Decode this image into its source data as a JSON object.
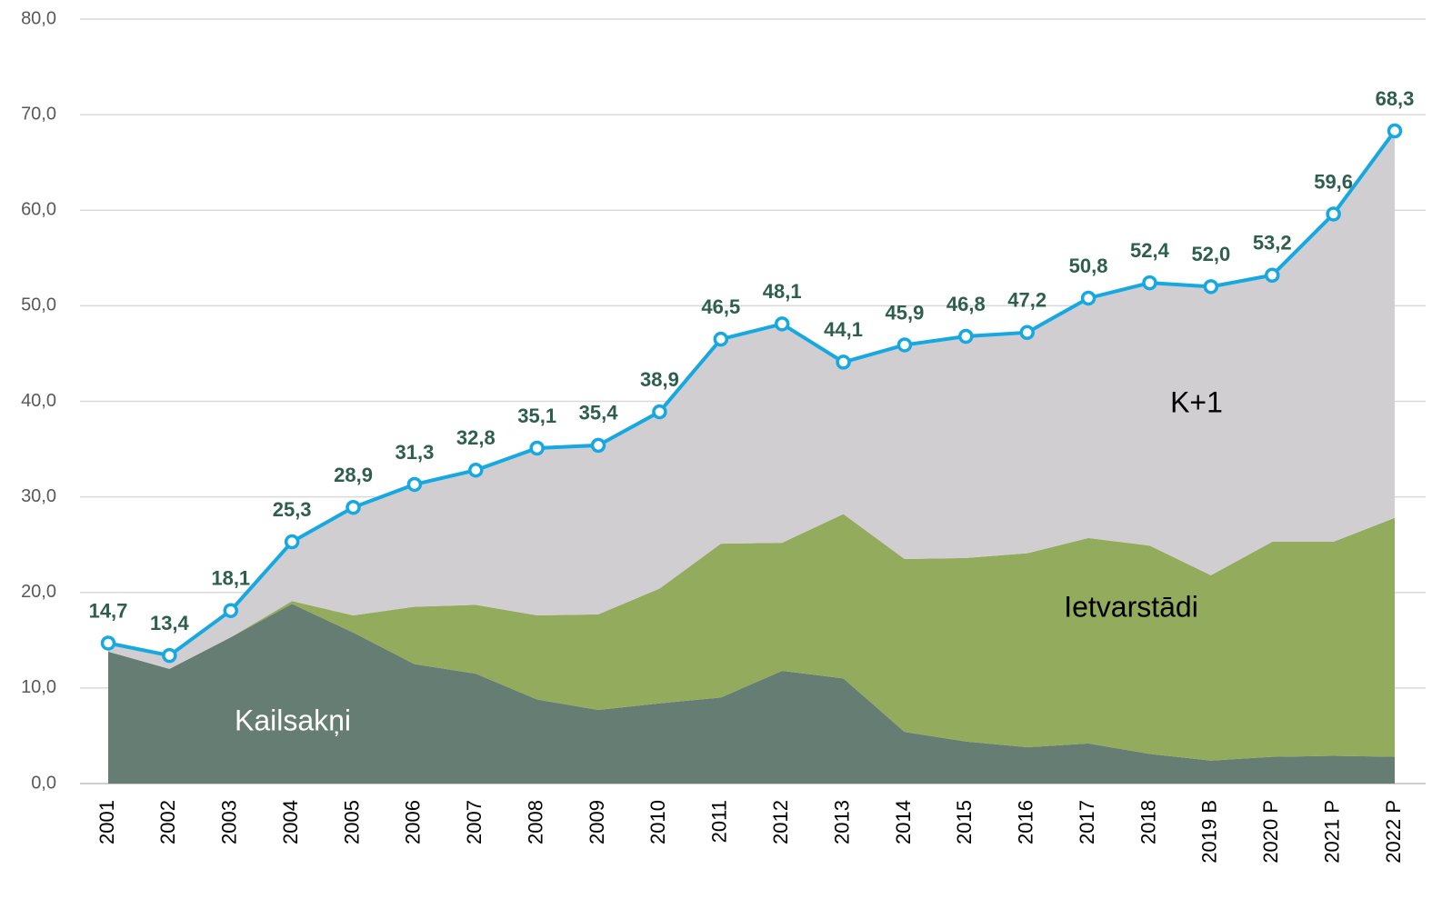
{
  "chart_data": {
    "type": "stacked_area_line",
    "categories": [
      "2001",
      "2002",
      "2003",
      "2004",
      "2005",
      "2006",
      "2007",
      "2008",
      "2009",
      "2010",
      "2011",
      "2012",
      "2013",
      "2014",
      "2015",
      "2016",
      "2017",
      "2018",
      "2019 B",
      "2020 P",
      "2021 P",
      "2022 P"
    ],
    "series": [
      {
        "name": "Kailsakņi",
        "color": "#667d74",
        "values": [
          13.8,
          12.0,
          15.3,
          18.8,
          15.8,
          12.5,
          11.5,
          8.8,
          7.7,
          8.4,
          9.0,
          11.8,
          11.0,
          5.4,
          4.4,
          3.8,
          4.2,
          3.1,
          2.4,
          2.8,
          2.9,
          2.8
        ]
      },
      {
        "name": "Ietvarstādi",
        "color": "#93ab5c",
        "values": [
          0,
          0,
          0,
          0.3,
          1.8,
          6.0,
          7.2,
          8.8,
          10.0,
          12.0,
          16.1,
          13.4,
          17.2,
          18.1,
          19.2,
          20.3,
          21.5,
          21.8,
          19.4,
          22.5,
          22.4,
          25.0
        ]
      },
      {
        "name": "K+1",
        "color": "#d0ced0",
        "values": [
          0.9,
          1.4,
          2.8,
          6.2,
          11.3,
          12.8,
          14.1,
          17.5,
          17.7,
          18.5,
          21.4,
          22.9,
          15.9,
          22.4,
          23.2,
          23.1,
          25.1,
          27.5,
          30.2,
          27.9,
          34.3,
          40.5
        ]
      }
    ],
    "line": {
      "color": "#16a8e0",
      "values": [
        14.7,
        13.4,
        18.1,
        25.3,
        28.9,
        31.3,
        32.8,
        35.1,
        35.4,
        38.9,
        46.5,
        48.1,
        44.1,
        45.9,
        46.8,
        47.2,
        50.8,
        52.4,
        52.0,
        53.2,
        59.6,
        68.3
      ],
      "value_labels": [
        "14,7",
        "13,4",
        "18,1",
        "25,3",
        "28,9",
        "31,3",
        "32,8",
        "35,1",
        "35,4",
        "38,9",
        "46,5",
        "48,1",
        "44,1",
        "45,9",
        "46,8",
        "47,2",
        "50,8",
        "52,4",
        "52,0",
        "53,2",
        "59,6",
        "68,3"
      ]
    },
    "ylim": [
      0,
      80
    ],
    "yticks": [
      {
        "value": 0,
        "label": "0,0"
      },
      {
        "value": 10,
        "label": "10,0"
      },
      {
        "value": 20,
        "label": "20,0"
      },
      {
        "value": 30,
        "label": "30,0"
      },
      {
        "value": 40,
        "label": "40,0"
      },
      {
        "value": 50,
        "label": "50,0"
      },
      {
        "value": 60,
        "label": "60,0"
      },
      {
        "value": 70,
        "label": "70,0"
      },
      {
        "value": 80,
        "label": "80,0"
      }
    ],
    "grid": true
  }
}
